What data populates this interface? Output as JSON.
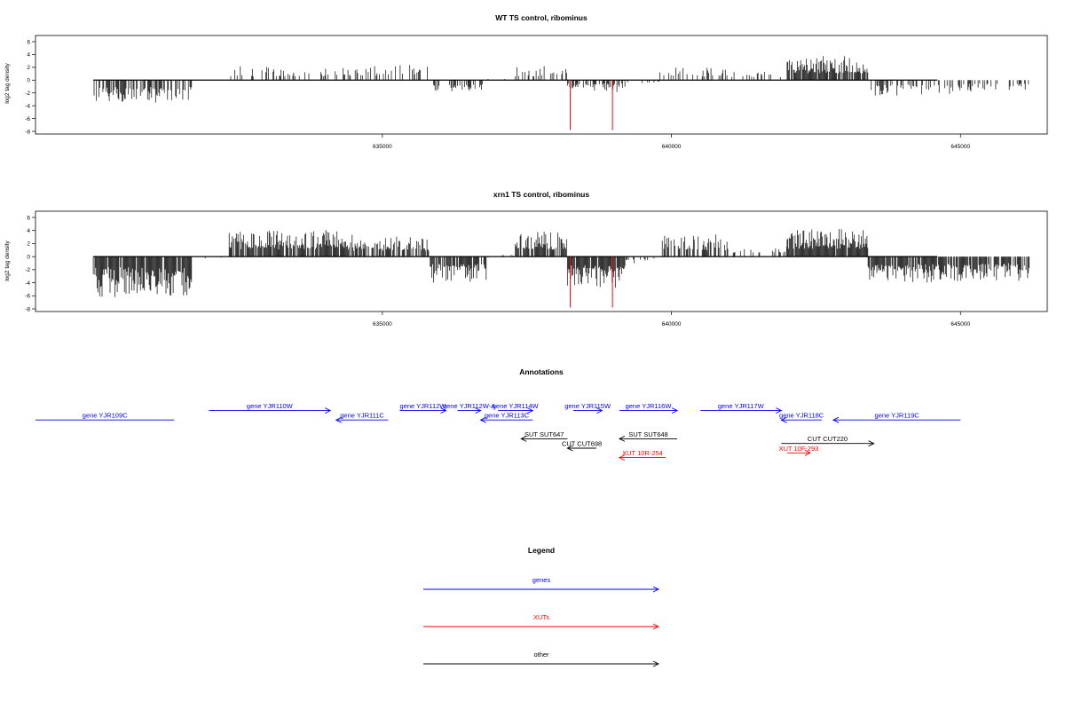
{
  "colors": {
    "black": "#000000",
    "gene": "#0000ff",
    "xut": "#ff0000"
  },
  "chart_data": [
    {
      "type": "bar",
      "title": "WT TS control, ribominus",
      "ylabel": "log2 tag density",
      "xlim": [
        629000,
        646500
      ],
      "ylim": [
        -8,
        6
      ],
      "yticks": [
        6,
        4,
        2,
        0,
        -2,
        -4,
        -6,
        -8
      ],
      "xticks": [
        635000,
        640000,
        645000
      ],
      "xticklabels": [
        "635000",
        "640000",
        "645000"
      ],
      "x_range": [
        630000,
        644600
      ],
      "highlight": [
        {
          "x": 638250,
          "value": -7.8
        },
        {
          "x": 638980,
          "value": -7.8
        }
      ],
      "profile": [
        {
          "start": 630000,
          "end": 631700,
          "level": -2.8,
          "density": 0.6
        },
        {
          "start": 632350,
          "end": 633300,
          "level": 1.6,
          "density": 0.35
        },
        {
          "start": 633300,
          "end": 634700,
          "level": 1.6,
          "density": 0.35
        },
        {
          "start": 634700,
          "end": 635800,
          "level": 1.8,
          "density": 0.3
        },
        {
          "start": 635800,
          "end": 636800,
          "level": -1.8,
          "density": 0.4
        },
        {
          "start": 636800,
          "end": 637300,
          "level": 0.2,
          "density": 0.1
        },
        {
          "start": 637300,
          "end": 638200,
          "level": 1.6,
          "density": 0.4
        },
        {
          "start": 638200,
          "end": 639200,
          "level": -1.4,
          "density": 0.5
        },
        {
          "start": 639200,
          "end": 639800,
          "level": -0.6,
          "density": 0.1
        },
        {
          "start": 639800,
          "end": 641000,
          "level": 1.6,
          "density": 0.25
        },
        {
          "start": 641000,
          "end": 642000,
          "level": 1.0,
          "density": 0.2
        },
        {
          "start": 642000,
          "end": 643400,
          "level": 2.8,
          "density": 0.85
        },
        {
          "start": 643400,
          "end": 645000,
          "level": -1.8,
          "density": 0.4
        },
        {
          "start": 645000,
          "end": 646200,
          "level": -1.4,
          "density": 0.35
        }
      ]
    },
    {
      "type": "bar",
      "title": "xrn1 TS control, ribominus",
      "ylabel": "log2 tag density",
      "xlim": [
        629000,
        646500
      ],
      "ylim": [
        -8,
        6
      ],
      "yticks": [
        6,
        4,
        2,
        0,
        -2,
        -4,
        -6,
        -8
      ],
      "xticks": [
        635000,
        640000,
        645000
      ],
      "xticklabels": [
        "635000",
        "640000",
        "645000"
      ],
      "x_range": [
        630000,
        644600
      ],
      "highlight": [
        {
          "x": 638250,
          "value": -7.8
        },
        {
          "x": 638980,
          "value": -7.8
        }
      ],
      "profile": [
        {
          "start": 630000,
          "end": 631700,
          "level": -4.6,
          "density": 0.95
        },
        {
          "start": 631700,
          "end": 632300,
          "level": -0.3,
          "density": 0.1
        },
        {
          "start": 632350,
          "end": 634500,
          "level": 3.0,
          "density": 0.9
        },
        {
          "start": 634500,
          "end": 635800,
          "level": 2.4,
          "density": 0.7
        },
        {
          "start": 635800,
          "end": 636800,
          "level": -3.0,
          "density": 0.8
        },
        {
          "start": 636800,
          "end": 637300,
          "level": 0.3,
          "density": 0.1
        },
        {
          "start": 637300,
          "end": 638200,
          "level": 2.8,
          "density": 0.85
        },
        {
          "start": 638200,
          "end": 639200,
          "level": -3.6,
          "density": 0.95
        },
        {
          "start": 639200,
          "end": 639800,
          "level": -0.8,
          "density": 0.2
        },
        {
          "start": 639800,
          "end": 641000,
          "level": 2.6,
          "density": 0.5
        },
        {
          "start": 641000,
          "end": 642000,
          "level": 1.4,
          "density": 0.3
        },
        {
          "start": 642000,
          "end": 643400,
          "level": 3.2,
          "density": 0.95
        },
        {
          "start": 643400,
          "end": 645000,
          "level": -3.0,
          "density": 0.85
        },
        {
          "start": 645000,
          "end": 646200,
          "level": -2.8,
          "density": 0.8
        }
      ]
    },
    {
      "type": "other",
      "title": "Annotations",
      "xlim": [
        629000,
        646500
      ],
      "features": [
        {
          "label": "gene YJR109C",
          "kind": "gene",
          "start": 629000,
          "end": 631400,
          "dir": "none",
          "row": 2
        },
        {
          "label": "gene YJR110W",
          "kind": "gene",
          "start": 632000,
          "end": 634100,
          "dir": "right",
          "row": 1
        },
        {
          "label": "gene YJR111C",
          "kind": "gene",
          "start": 634200,
          "end": 635100,
          "dir": "left",
          "row": 2
        },
        {
          "label": "gene YJR112W",
          "kind": "gene",
          "start": 635300,
          "end": 636100,
          "dir": "right",
          "row": 1
        },
        {
          "label": "gene YJR112W-A",
          "kind": "gene",
          "start": 636300,
          "end": 636700,
          "dir": "right",
          "row": 1
        },
        {
          "label": "gene YJR114W",
          "kind": "gene",
          "start": 637000,
          "end": 637600,
          "dir": "right",
          "row": 1
        },
        {
          "label": "gene YJR113C",
          "kind": "gene",
          "start": 636700,
          "end": 637600,
          "dir": "left",
          "row": 2
        },
        {
          "label": "gene YJR115W",
          "kind": "gene",
          "start": 638300,
          "end": 638800,
          "dir": "right",
          "row": 1
        },
        {
          "label": "gene YJR116W",
          "kind": "gene",
          "start": 639100,
          "end": 640100,
          "dir": "right",
          "row": 1
        },
        {
          "label": "gene YJR117W",
          "kind": "gene",
          "start": 640500,
          "end": 641900,
          "dir": "right",
          "row": 1
        },
        {
          "label": "gene YJR118C",
          "kind": "gene",
          "start": 641900,
          "end": 642600,
          "dir": "left",
          "row": 2
        },
        {
          "label": "gene YJR119C",
          "kind": "gene",
          "start": 642800,
          "end": 645000,
          "dir": "left",
          "row": 2
        },
        {
          "label": "SUT SUT647",
          "kind": "other",
          "start": 637400,
          "end": 638200,
          "dir": "left",
          "row": 4
        },
        {
          "label": "SUT SUT648",
          "kind": "other",
          "start": 639100,
          "end": 640100,
          "dir": "left",
          "row": 4
        },
        {
          "label": "CUT CUT698",
          "kind": "other",
          "start": 638200,
          "end": 638700,
          "dir": "left",
          "row": 5
        },
        {
          "label": "CUT CUT220",
          "kind": "other",
          "start": 641900,
          "end": 643500,
          "dir": "right",
          "row": 4.5
        },
        {
          "label": "XUT 10R-254",
          "kind": "xut",
          "start": 639100,
          "end": 639900,
          "dir": "left",
          "row": 6
        },
        {
          "label": "XUT 10F-293",
          "kind": "xut",
          "start": 642000,
          "end": 642400,
          "dir": "right",
          "row": 5.5
        }
      ]
    },
    {
      "type": "other",
      "title": "Legend",
      "entries": [
        {
          "label": "genes",
          "kind": "gene"
        },
        {
          "label": "XUTs",
          "kind": "xut"
        },
        {
          "label": "other",
          "kind": "other"
        }
      ]
    }
  ]
}
